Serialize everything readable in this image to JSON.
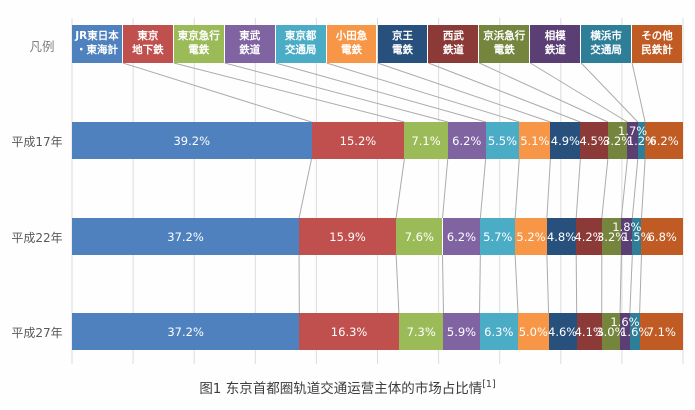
{
  "caption": {
    "text": "图1 东京首都圈轨道交通运营主体的市场占比情",
    "superscript": "[1]"
  },
  "chart_data": {
    "type": "bar",
    "stacked": true,
    "orientation": "horizontal",
    "unit": "%",
    "legend_label": "凡例",
    "legend_position": "top",
    "grid": true,
    "x_axis": {
      "min": 0,
      "max": 100,
      "gridline_step": 10,
      "tick_labels_visible": false
    },
    "categories": [
      "平成17年",
      "平成22年",
      "平成27年"
    ],
    "series": [
      {
        "name": "JR東日本・東海計",
        "legend_lines": "JR東日本\n・東海計",
        "color": "#4E81BD",
        "values": [
          39.2,
          37.2,
          37.2
        ]
      },
      {
        "name": "東京地下鉄",
        "legend_lines": "東京\n地下鉄",
        "color": "#C0504D",
        "values": [
          15.2,
          15.9,
          16.3
        ]
      },
      {
        "name": "東京急行電鉄",
        "legend_lines": "東京急行\n電鉄",
        "color": "#9BBB59",
        "values": [
          7.1,
          7.6,
          7.3
        ]
      },
      {
        "name": "東武鉄道",
        "legend_lines": "東武\n鉄道",
        "color": "#8064A2",
        "values": [
          6.2,
          6.2,
          5.9
        ]
      },
      {
        "name": "東京都交通局",
        "legend_lines": "東京都\n交通局",
        "color": "#4BACC6",
        "values": [
          5.5,
          5.7,
          6.3
        ]
      },
      {
        "name": "小田急電鉄",
        "legend_lines": "小田急\n電鉄",
        "color": "#F79646",
        "values": [
          5.1,
          5.2,
          5.0
        ]
      },
      {
        "name": "京王電鉄",
        "legend_lines": "京王\n電鉄",
        "color": "#27517C",
        "values": [
          4.9,
          4.8,
          4.6
        ]
      },
      {
        "name": "西武鉄道",
        "legend_lines": "西武\n鉄道",
        "color": "#8C3A37",
        "values": [
          4.5,
          4.2,
          4.1
        ]
      },
      {
        "name": "京浜急行電鉄",
        "legend_lines": "京浜急行\n電鉄",
        "color": "#75853D",
        "values": [
          3.2,
          3.2,
          3.0
        ]
      },
      {
        "name": "相模鉄道",
        "legend_lines": "相模\n鉄道",
        "color": "#5B3E74",
        "values": [
          1.7,
          1.8,
          1.6
        ],
        "label_raised": true
      },
      {
        "name": "横浜市交通局",
        "legend_lines": "横浜市\n交通局",
        "color": "#2F7E97",
        "values": [
          1.2,
          1.5,
          1.6
        ]
      },
      {
        "name": "その他民鉄計",
        "legend_lines": "その他\n民鉄計",
        "color": "#C05B24",
        "values": [
          6.2,
          6.8,
          7.1
        ]
      }
    ],
    "colors_meta": {
      "gridline": "#DCDCDC",
      "connector_line": "#ABABAB",
      "bar_label_text": "#FFFFFF",
      "axis_label_text": "#595959"
    }
  }
}
